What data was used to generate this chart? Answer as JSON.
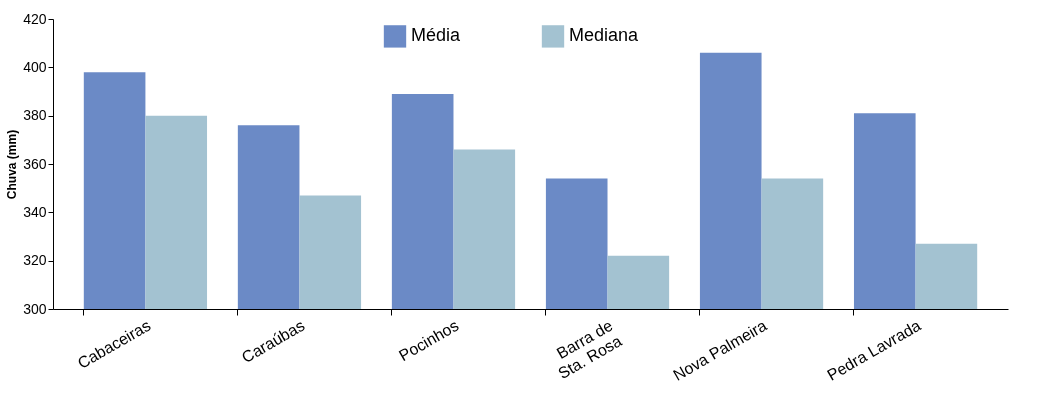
{
  "chart_data": {
    "type": "bar",
    "ylabel": "Chuva (mm)",
    "categories": [
      "Cabaceiras",
      "Caraúbas",
      "Pocinhos",
      "Barra de\nSta. Rosa",
      "Nova Palmeira",
      "Pedra Lavrada"
    ],
    "series": [
      {
        "name": "Média",
        "color": "#6b8ac6",
        "values": [
          398,
          376,
          389,
          354,
          406,
          381
        ]
      },
      {
        "name": "Mediana",
        "color": "#a3c2d1",
        "values": [
          380,
          347,
          366,
          322,
          354,
          327
        ]
      }
    ],
    "ylim": [
      300,
      420
    ],
    "yticks": [
      300,
      320,
      340,
      360,
      380,
      400,
      420
    ],
    "grid": false,
    "legend": "top"
  }
}
